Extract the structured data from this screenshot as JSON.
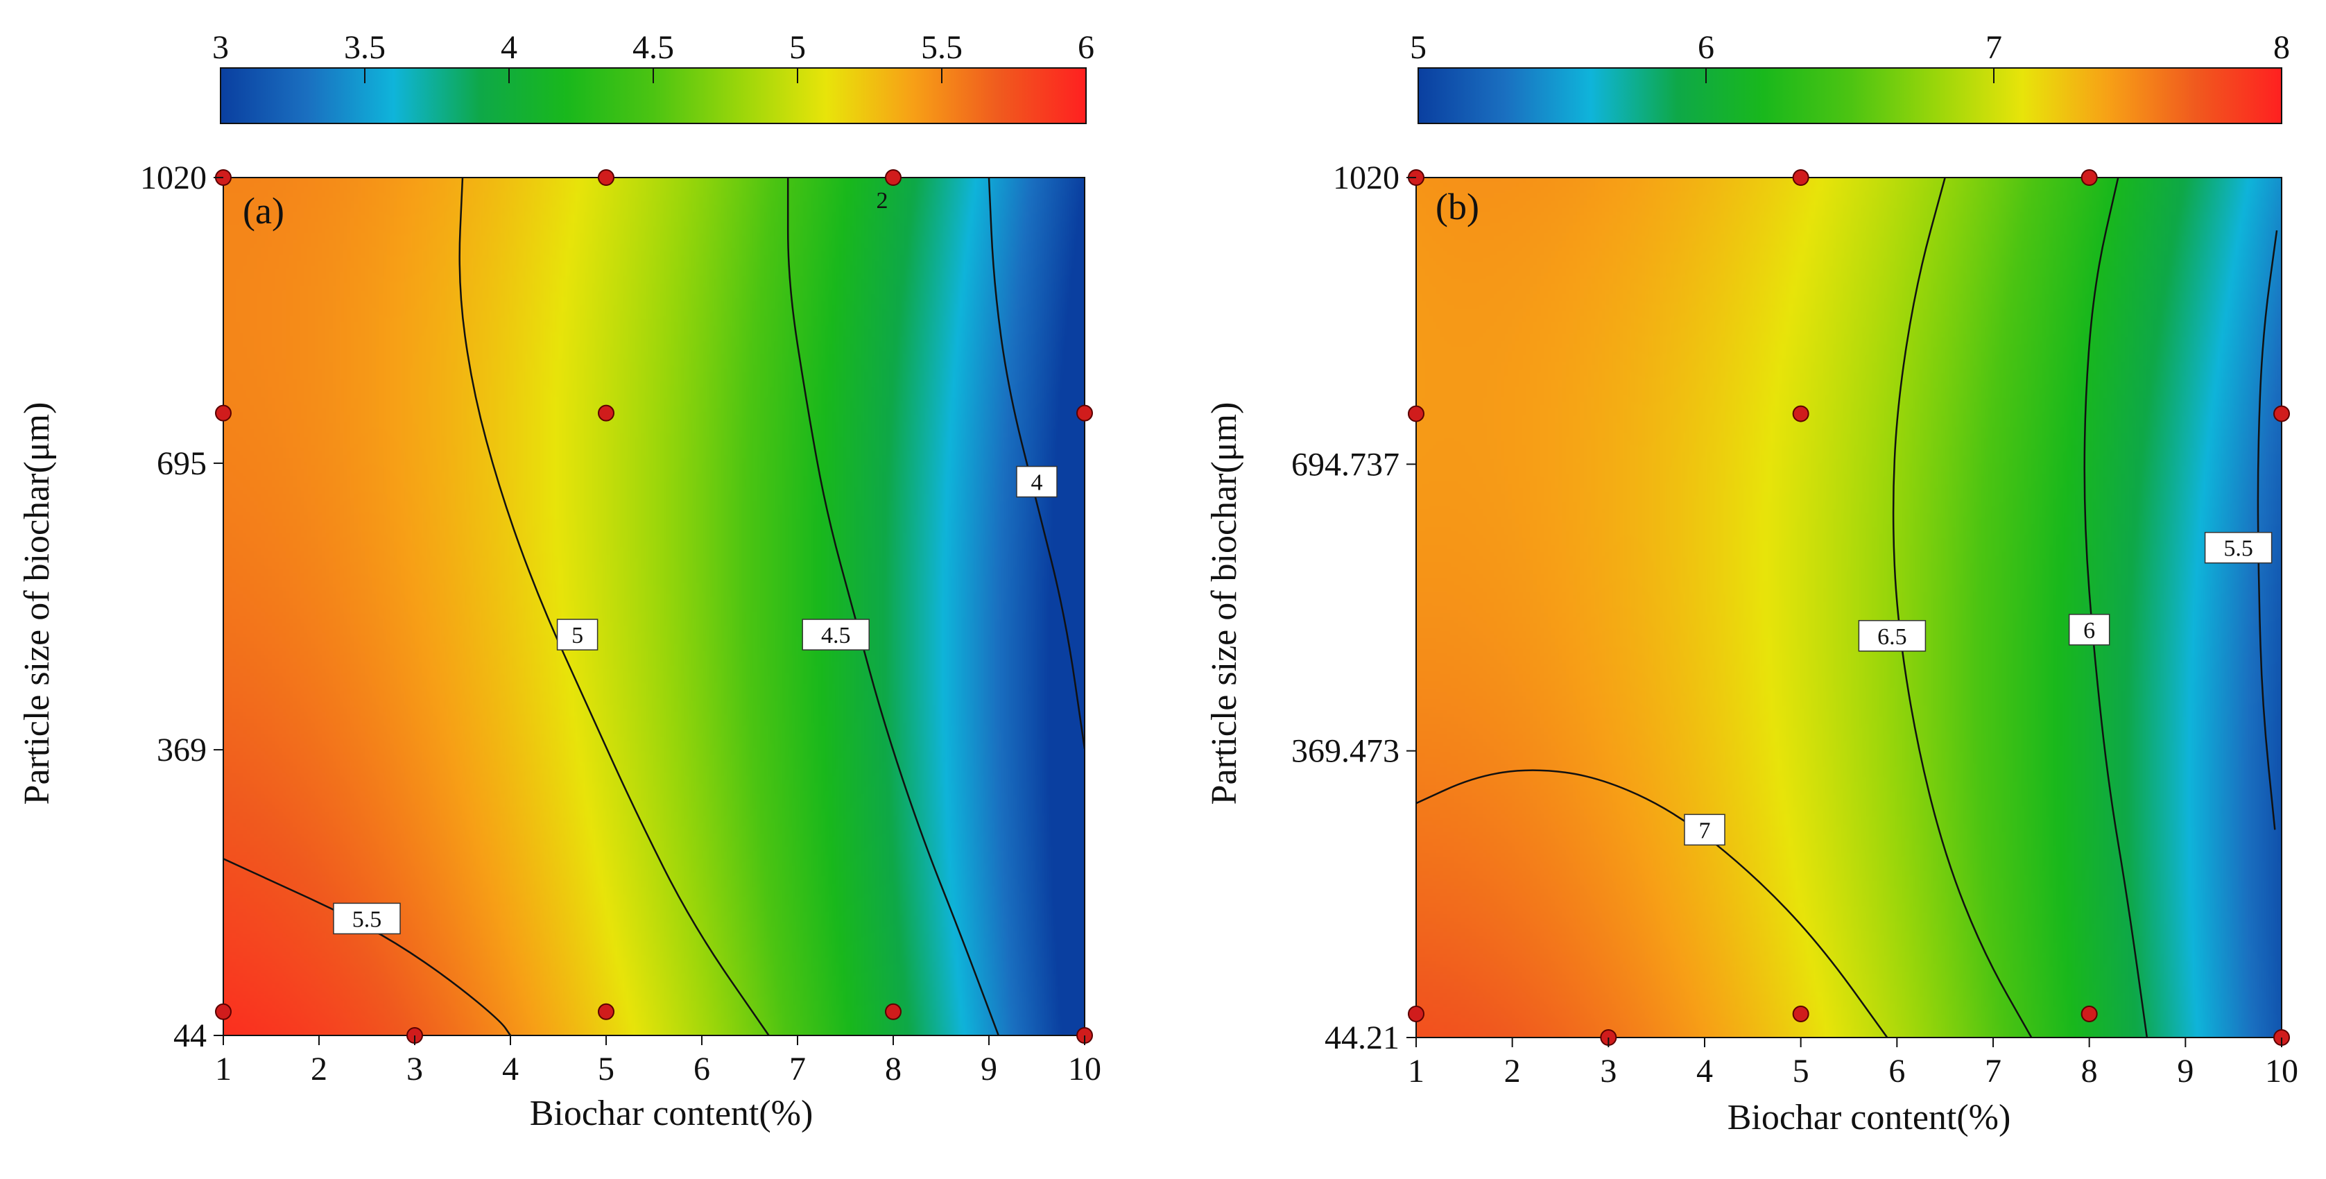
{
  "chart_data": [
    {
      "type": "heatmap",
      "panel": "(a)",
      "xlabel": "Biochar content(%)",
      "ylabel": "Particle size of biochar(μm)",
      "x_ticks": [
        1,
        2,
        3,
        4,
        5,
        6,
        7,
        8,
        9,
        10
      ],
      "x_tick_labels": [
        "1",
        "2",
        "3",
        "4",
        "5",
        "6",
        "7",
        "8",
        "9",
        "10"
      ],
      "y_ticks": [
        44,
        369,
        695,
        1020
      ],
      "y_tick_labels": [
        "44",
        "369",
        "695",
        "1020"
      ],
      "xlim": [
        1,
        10
      ],
      "ylim": [
        44,
        1020
      ],
      "colorbar_ticks": [
        3,
        3.5,
        4,
        4.5,
        5,
        5.5,
        6
      ],
      "colorbar_labels": [
        "3",
        "3.5",
        "4",
        "4.5",
        "5",
        "5.5",
        "6"
      ],
      "colorbar_range": [
        3,
        6
      ],
      "contours": [
        {
          "level": 5.5,
          "label": "5.5",
          "points": [
            [
              1,
              245
            ],
            [
              1.6,
              215
            ],
            [
              2.2,
              185
            ],
            [
              2.8,
              150
            ],
            [
              3.4,
              105
            ],
            [
              3.9,
              60
            ],
            [
              4.0,
              44
            ]
          ],
          "label_at": [
            2.5,
            177
          ]
        },
        {
          "level": 5,
          "label": "5",
          "points": [
            [
              3.5,
              1020
            ],
            [
              3.45,
              900
            ],
            [
              3.6,
              780
            ],
            [
              3.9,
              660
            ],
            [
              4.3,
              540
            ],
            [
              4.8,
              420
            ],
            [
              5.3,
              300
            ],
            [
              5.9,
              170
            ],
            [
              6.7,
              44
            ]
          ],
          "label_at": [
            4.7,
            500
          ]
        },
        {
          "level": 4.5,
          "label": "4.5",
          "points": [
            [
              6.9,
              1020
            ],
            [
              6.9,
              900
            ],
            [
              7.1,
              760
            ],
            [
              7.3,
              640
            ],
            [
              7.6,
              520
            ],
            [
              7.9,
              400
            ],
            [
              8.3,
              270
            ],
            [
              8.7,
              160
            ],
            [
              9.1,
              44
            ]
          ],
          "label_at": [
            7.4,
            500
          ]
        },
        {
          "level": 4,
          "label": "4",
          "points": [
            [
              9.0,
              1020
            ],
            [
              9.05,
              900
            ],
            [
              9.2,
              780
            ],
            [
              9.5,
              650
            ],
            [
              9.8,
              520
            ],
            [
              10,
              370
            ]
          ],
          "label_at": [
            9.5,
            674
          ]
        }
      ],
      "design_points": [
        {
          "x": 1,
          "y": 1020
        },
        {
          "x": 5,
          "y": 1020
        },
        {
          "x": 8,
          "y": 1020
        },
        {
          "x": 1,
          "y": 752
        },
        {
          "x": 5,
          "y": 752
        },
        {
          "x": 10,
          "y": 752
        },
        {
          "x": 1,
          "y": 71
        },
        {
          "x": 5,
          "y": 71
        },
        {
          "x": 8,
          "y": 71
        },
        {
          "x": 3,
          "y": 44
        },
        {
          "x": 10,
          "y": 44
        }
      ],
      "point_annotations": [
        {
          "x": 8,
          "y": 1020,
          "text": "2"
        }
      ]
    },
    {
      "type": "heatmap",
      "panel": "(b)",
      "xlabel": "Biochar content(%)",
      "ylabel": "Particle size of biochar(μm)",
      "x_ticks": [
        1,
        2,
        3,
        4,
        5,
        6,
        7,
        8,
        9,
        10
      ],
      "x_tick_labels": [
        "1",
        "2",
        "3",
        "4",
        "5",
        "6",
        "7",
        "8",
        "9",
        "10"
      ],
      "y_ticks": [
        44.21,
        369.473,
        694.737,
        1020
      ],
      "y_tick_labels": [
        "44.21",
        "369.473",
        "694.737",
        "1020"
      ],
      "xlim": [
        1,
        10
      ],
      "ylim": [
        44.21,
        1020
      ],
      "colorbar_ticks": [
        5,
        6,
        7,
        8
      ],
      "colorbar_labels": [
        "5",
        "6",
        "7",
        "8"
      ],
      "colorbar_range": [
        5,
        8
      ],
      "contours": [
        {
          "level": 7,
          "label": "7",
          "points": [
            [
              1,
              310
            ],
            [
              1.6,
              340
            ],
            [
              2.2,
              350
            ],
            [
              2.9,
              340
            ],
            [
              3.7,
              300
            ],
            [
              4.5,
              230
            ],
            [
              5.2,
              150
            ],
            [
              5.9,
              44
            ]
          ],
          "label_at": [
            4.0,
            280
          ]
        },
        {
          "level": 6.5,
          "label": "6.5",
          "points": [
            [
              6.5,
              1020
            ],
            [
              6.2,
              900
            ],
            [
              6.0,
              760
            ],
            [
              5.95,
              640
            ],
            [
              6.0,
              520
            ],
            [
              6.2,
              380
            ],
            [
              6.5,
              250
            ],
            [
              6.9,
              140
            ],
            [
              7.4,
              44
            ]
          ],
          "label_at": [
            5.95,
            500
          ]
        },
        {
          "level": 6,
          "label": "6",
          "points": [
            [
              8.3,
              1020
            ],
            [
              8.05,
              900
            ],
            [
              7.95,
              760
            ],
            [
              7.95,
              620
            ],
            [
              8.05,
              480
            ],
            [
              8.2,
              330
            ],
            [
              8.4,
              200
            ],
            [
              8.6,
              44
            ]
          ],
          "label_at": [
            8.0,
            507
          ]
        },
        {
          "level": 5.5,
          "label": "5.5",
          "points": [
            [
              9.95,
              960
            ],
            [
              9.8,
              840
            ],
            [
              9.75,
              700
            ],
            [
              9.76,
              560
            ],
            [
              9.8,
              420
            ],
            [
              9.93,
              280
            ]
          ],
          "label_at": [
            9.55,
            600
          ]
        }
      ],
      "design_points": [
        {
          "x": 1,
          "y": 1020
        },
        {
          "x": 5,
          "y": 1020
        },
        {
          "x": 8,
          "y": 1020
        },
        {
          "x": 1,
          "y": 752
        },
        {
          "x": 5,
          "y": 752
        },
        {
          "x": 10,
          "y": 752
        },
        {
          "x": 1,
          "y": 71
        },
        {
          "x": 5,
          "y": 71
        },
        {
          "x": 8,
          "y": 71
        },
        {
          "x": 3,
          "y": 44.21
        },
        {
          "x": 10,
          "y": 44.21
        }
      ],
      "point_annotations": []
    }
  ],
  "colors": {
    "ramp": [
      "#0a3fa0",
      "#1a6fc0",
      "#0fb4da",
      "#0ea848",
      "#19b81c",
      "#4cc412",
      "#9ad60a",
      "#e8e40a",
      "#f7a016",
      "#f05a1e",
      "#ff2020"
    ],
    "point_fill": "#d01c1c",
    "point_stroke": "#5a0000",
    "contour": "#111111",
    "frame": "#111111"
  }
}
